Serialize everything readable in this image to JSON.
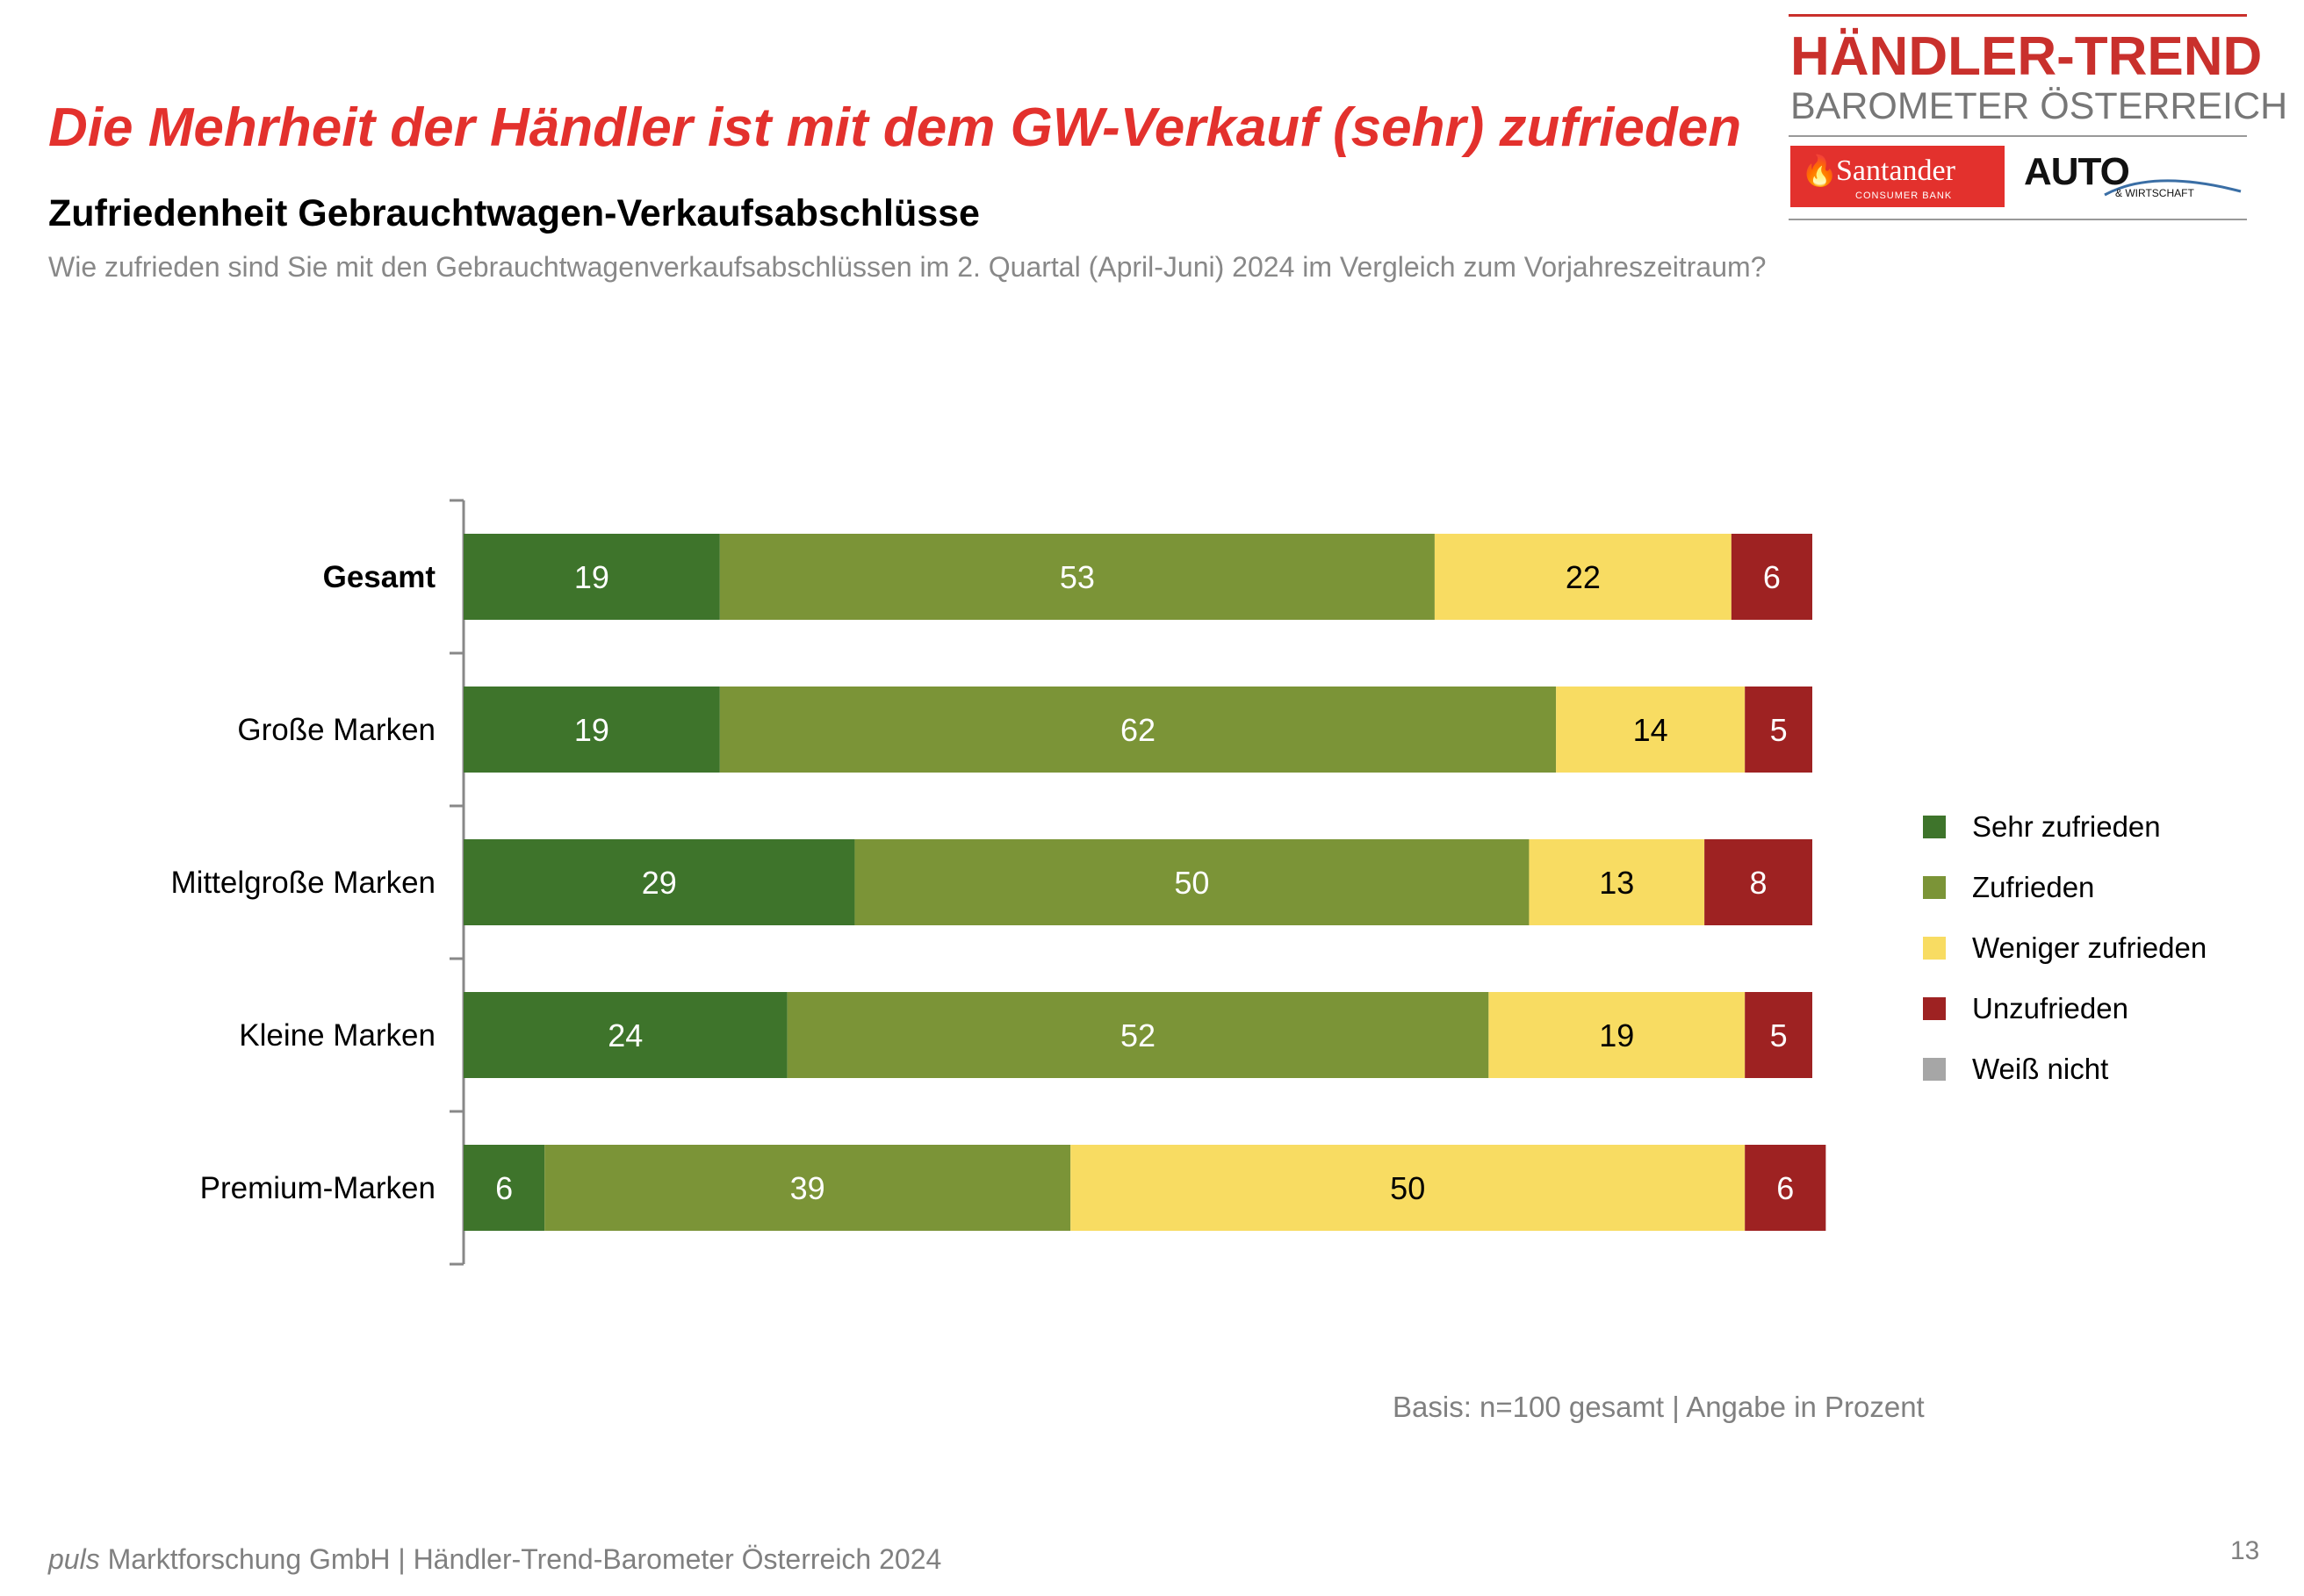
{
  "headline": "Die Mehrheit der Händler ist mit dem GW-Verkauf (sehr) zufrieden",
  "subtitle": "Zufriedenheit Gebrauchtwagen-Verkaufsabschlüsse",
  "question": "Wie zufrieden sind Sie mit den Gebrauchtwagenverkaufsabschlüssen im 2. Quartal (April-Juni) 2024 im Vergleich zum Vorjahreszeitraum?",
  "logo": {
    "title": "HÄNDLER-TREND",
    "subtitle": "BAROMETER ÖSTERREICH",
    "sponsor": "Santander",
    "sponsor_tagline": "CONSUMER BANK",
    "partner": "AUTO",
    "partner_tagline": "& WIRTSCHAFT",
    "brand_color": "#c9302c"
  },
  "chart_data": {
    "type": "bar",
    "orientation": "horizontal",
    "stacked": true,
    "title": "",
    "xlabel": "",
    "ylabel": "",
    "xlim": [
      0,
      100
    ],
    "categories": [
      "Gesamt",
      "Große Marken",
      "Mittelgroße Marken",
      "Kleine Marken",
      "Premium-Marken"
    ],
    "bold_categories": [
      "Gesamt"
    ],
    "series": [
      {
        "name": "Sehr zufrieden",
        "color": "#3e742b",
        "label_color": "#ffffff",
        "values": [
          19,
          19,
          29,
          24,
          6
        ]
      },
      {
        "name": "Zufrieden",
        "color": "#7b9437",
        "label_color": "#ffffff",
        "values": [
          53,
          62,
          50,
          52,
          39
        ]
      },
      {
        "name": "Weniger zufrieden",
        "color": "#f8dc62",
        "label_color": "#000000",
        "values": [
          22,
          14,
          13,
          19,
          50
        ]
      },
      {
        "name": "Unzufrieden",
        "color": "#9e2222",
        "label_color": "#ffffff",
        "values": [
          6,
          5,
          8,
          5,
          6
        ]
      },
      {
        "name": "Weiß nicht",
        "color": "#a6a6a6",
        "label_color": "#000000",
        "values": [
          0,
          0,
          0,
          0,
          0
        ]
      }
    ],
    "legend_position": "right",
    "grid": false
  },
  "basis": "Basis: n=100 gesamt | Angabe in Prozent",
  "footer": {
    "brand": "puls",
    "text": " Marktforschung GmbH | Händler-Trend-Barometer Österreich 2024"
  },
  "page_number": "13"
}
